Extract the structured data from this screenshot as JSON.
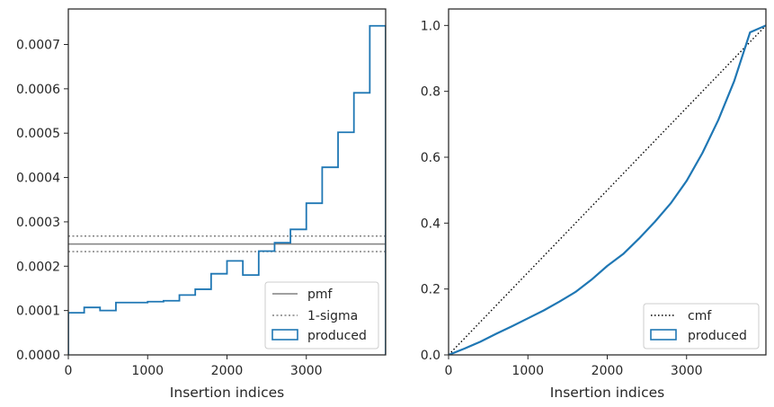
{
  "colors": {
    "produced": "#1f77b4",
    "pmf": "#808080",
    "sigma": "#808080",
    "cmf": "#000000",
    "axes": "#262626",
    "legend_border": "#cccccc"
  },
  "chart_data": [
    {
      "type": "step",
      "xlabel": "Insertion indices",
      "ylabel": "",
      "xlim": [
        0,
        4000
      ],
      "ylim": [
        0,
        0.00078
      ],
      "xticks": [
        0,
        1000,
        2000,
        3000
      ],
      "xtick_labels": [
        "0",
        "1000",
        "2000",
        "3000"
      ],
      "yticks": [
        0,
        0.0001,
        0.0002,
        0.0003,
        0.0004,
        0.0005,
        0.0006,
        0.0007
      ],
      "ytick_labels": [
        "0.0000",
        "0.0001",
        "0.0002",
        "0.0003",
        "0.0004",
        "0.0005",
        "0.0006",
        "0.0007"
      ],
      "grid": false,
      "legend_position": "lower-right",
      "legend": [
        "pmf",
        "1-sigma",
        "produced"
      ],
      "series": [
        {
          "name": "produced",
          "kind": "histogram-step",
          "bin_edges": [
            0,
            200,
            400,
            600,
            800,
            1000,
            1200,
            1400,
            1600,
            1800,
            2000,
            2200,
            2400,
            2600,
            2800,
            3000,
            3200,
            3400,
            3600,
            3800,
            4000
          ],
          "values": [
            9.5e-05,
            0.000107,
            0.0001,
            0.000118,
            0.000118,
            0.00012,
            0.000122,
            0.000135,
            0.000148,
            0.000183,
            0.000212,
            0.00018,
            0.000234,
            0.000253,
            0.000283,
            0.000342,
            0.000423,
            0.000502,
            0.000591,
            0.000742
          ]
        },
        {
          "name": "pmf",
          "kind": "hline",
          "value": 0.00025
        },
        {
          "name": "1-sigma",
          "kind": "hline-pair",
          "values": [
            0.000233,
            0.000268
          ]
        }
      ]
    },
    {
      "type": "line",
      "xlabel": "Insertion indices",
      "ylabel": "",
      "xlim": [
        0,
        4000
      ],
      "ylim": [
        0,
        1.05
      ],
      "xticks": [
        0,
        1000,
        2000,
        3000
      ],
      "xtick_labels": [
        "0",
        "1000",
        "2000",
        "3000"
      ],
      "yticks": [
        0,
        0.2,
        0.4,
        0.6,
        0.8,
        1.0
      ],
      "ytick_labels": [
        "0.0",
        "0.2",
        "0.4",
        "0.6",
        "0.8",
        "1.0"
      ],
      "grid": false,
      "legend_position": "lower-right",
      "legend": [
        "cmf",
        "produced"
      ],
      "series": [
        {
          "name": "cmf",
          "kind": "line-dotted",
          "x": [
            0,
            4000
          ],
          "y": [
            0,
            1
          ]
        },
        {
          "name": "produced",
          "kind": "line",
          "x": [
            0,
            200,
            400,
            600,
            800,
            1000,
            1200,
            1400,
            1600,
            1800,
            2000,
            2200,
            2400,
            2600,
            2800,
            3000,
            3200,
            3400,
            3600,
            3800,
            4000
          ],
          "y": [
            0,
            0.019,
            0.04,
            0.064,
            0.087,
            0.111,
            0.135,
            0.162,
            0.191,
            0.228,
            0.27,
            0.306,
            0.353,
            0.404,
            0.46,
            0.528,
            0.613,
            0.713,
            0.831,
            0.979,
            1.0
          ]
        }
      ]
    }
  ]
}
